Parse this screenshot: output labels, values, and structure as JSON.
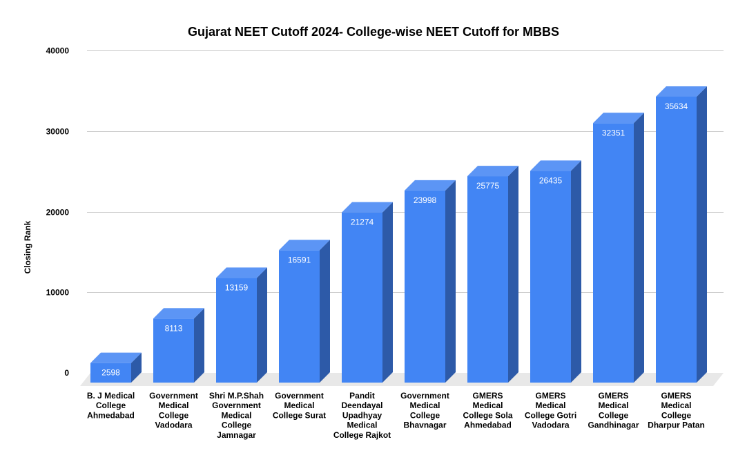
{
  "chart_data": {
    "type": "bar",
    "title": "Gujarat NEET Cutoff 2024- College-wise NEET Cutoff for MBBS",
    "xlabel": "",
    "ylabel": "Closing Rank",
    "ylim": [
      0,
      40000
    ],
    "yticks": [
      "0",
      "10000",
      "20000",
      "30000",
      "40000"
    ],
    "grid": true,
    "legend": "none",
    "style": "3d-column",
    "colors": {
      "front": "#4285f4",
      "top": "#5c95f5",
      "side": "#2d5aa8",
      "floor": "#e8e8e8",
      "grid": "#cccccc"
    },
    "categories": [
      [
        "B. J Medical",
        "College",
        "Ahmedabad"
      ],
      [
        "Government",
        "Medical",
        "College",
        "Vadodara"
      ],
      [
        "Shri M.P.Shah",
        "Government",
        "Medical",
        "College",
        "Jamnagar"
      ],
      [
        "Government",
        "Medical",
        "College Surat"
      ],
      [
        "Pandit",
        "Deendayal",
        "Upadhyay",
        "Medical",
        "College Rajkot"
      ],
      [
        "Government",
        "Medical",
        "College",
        "Bhavnagar"
      ],
      [
        "GMERS",
        "Medical",
        "College Sola",
        "Ahmedabad"
      ],
      [
        "GMERS",
        "Medical",
        "College Gotri",
        "Vadodara"
      ],
      [
        "GMERS",
        "Medical",
        "College",
        "Gandhinagar"
      ],
      [
        "GMERS",
        "Medical",
        "College",
        "Dharpur Patan"
      ]
    ],
    "values": [
      2598,
      8113,
      13159,
      16591,
      21274,
      23998,
      25775,
      26435,
      32351,
      35634
    ]
  }
}
